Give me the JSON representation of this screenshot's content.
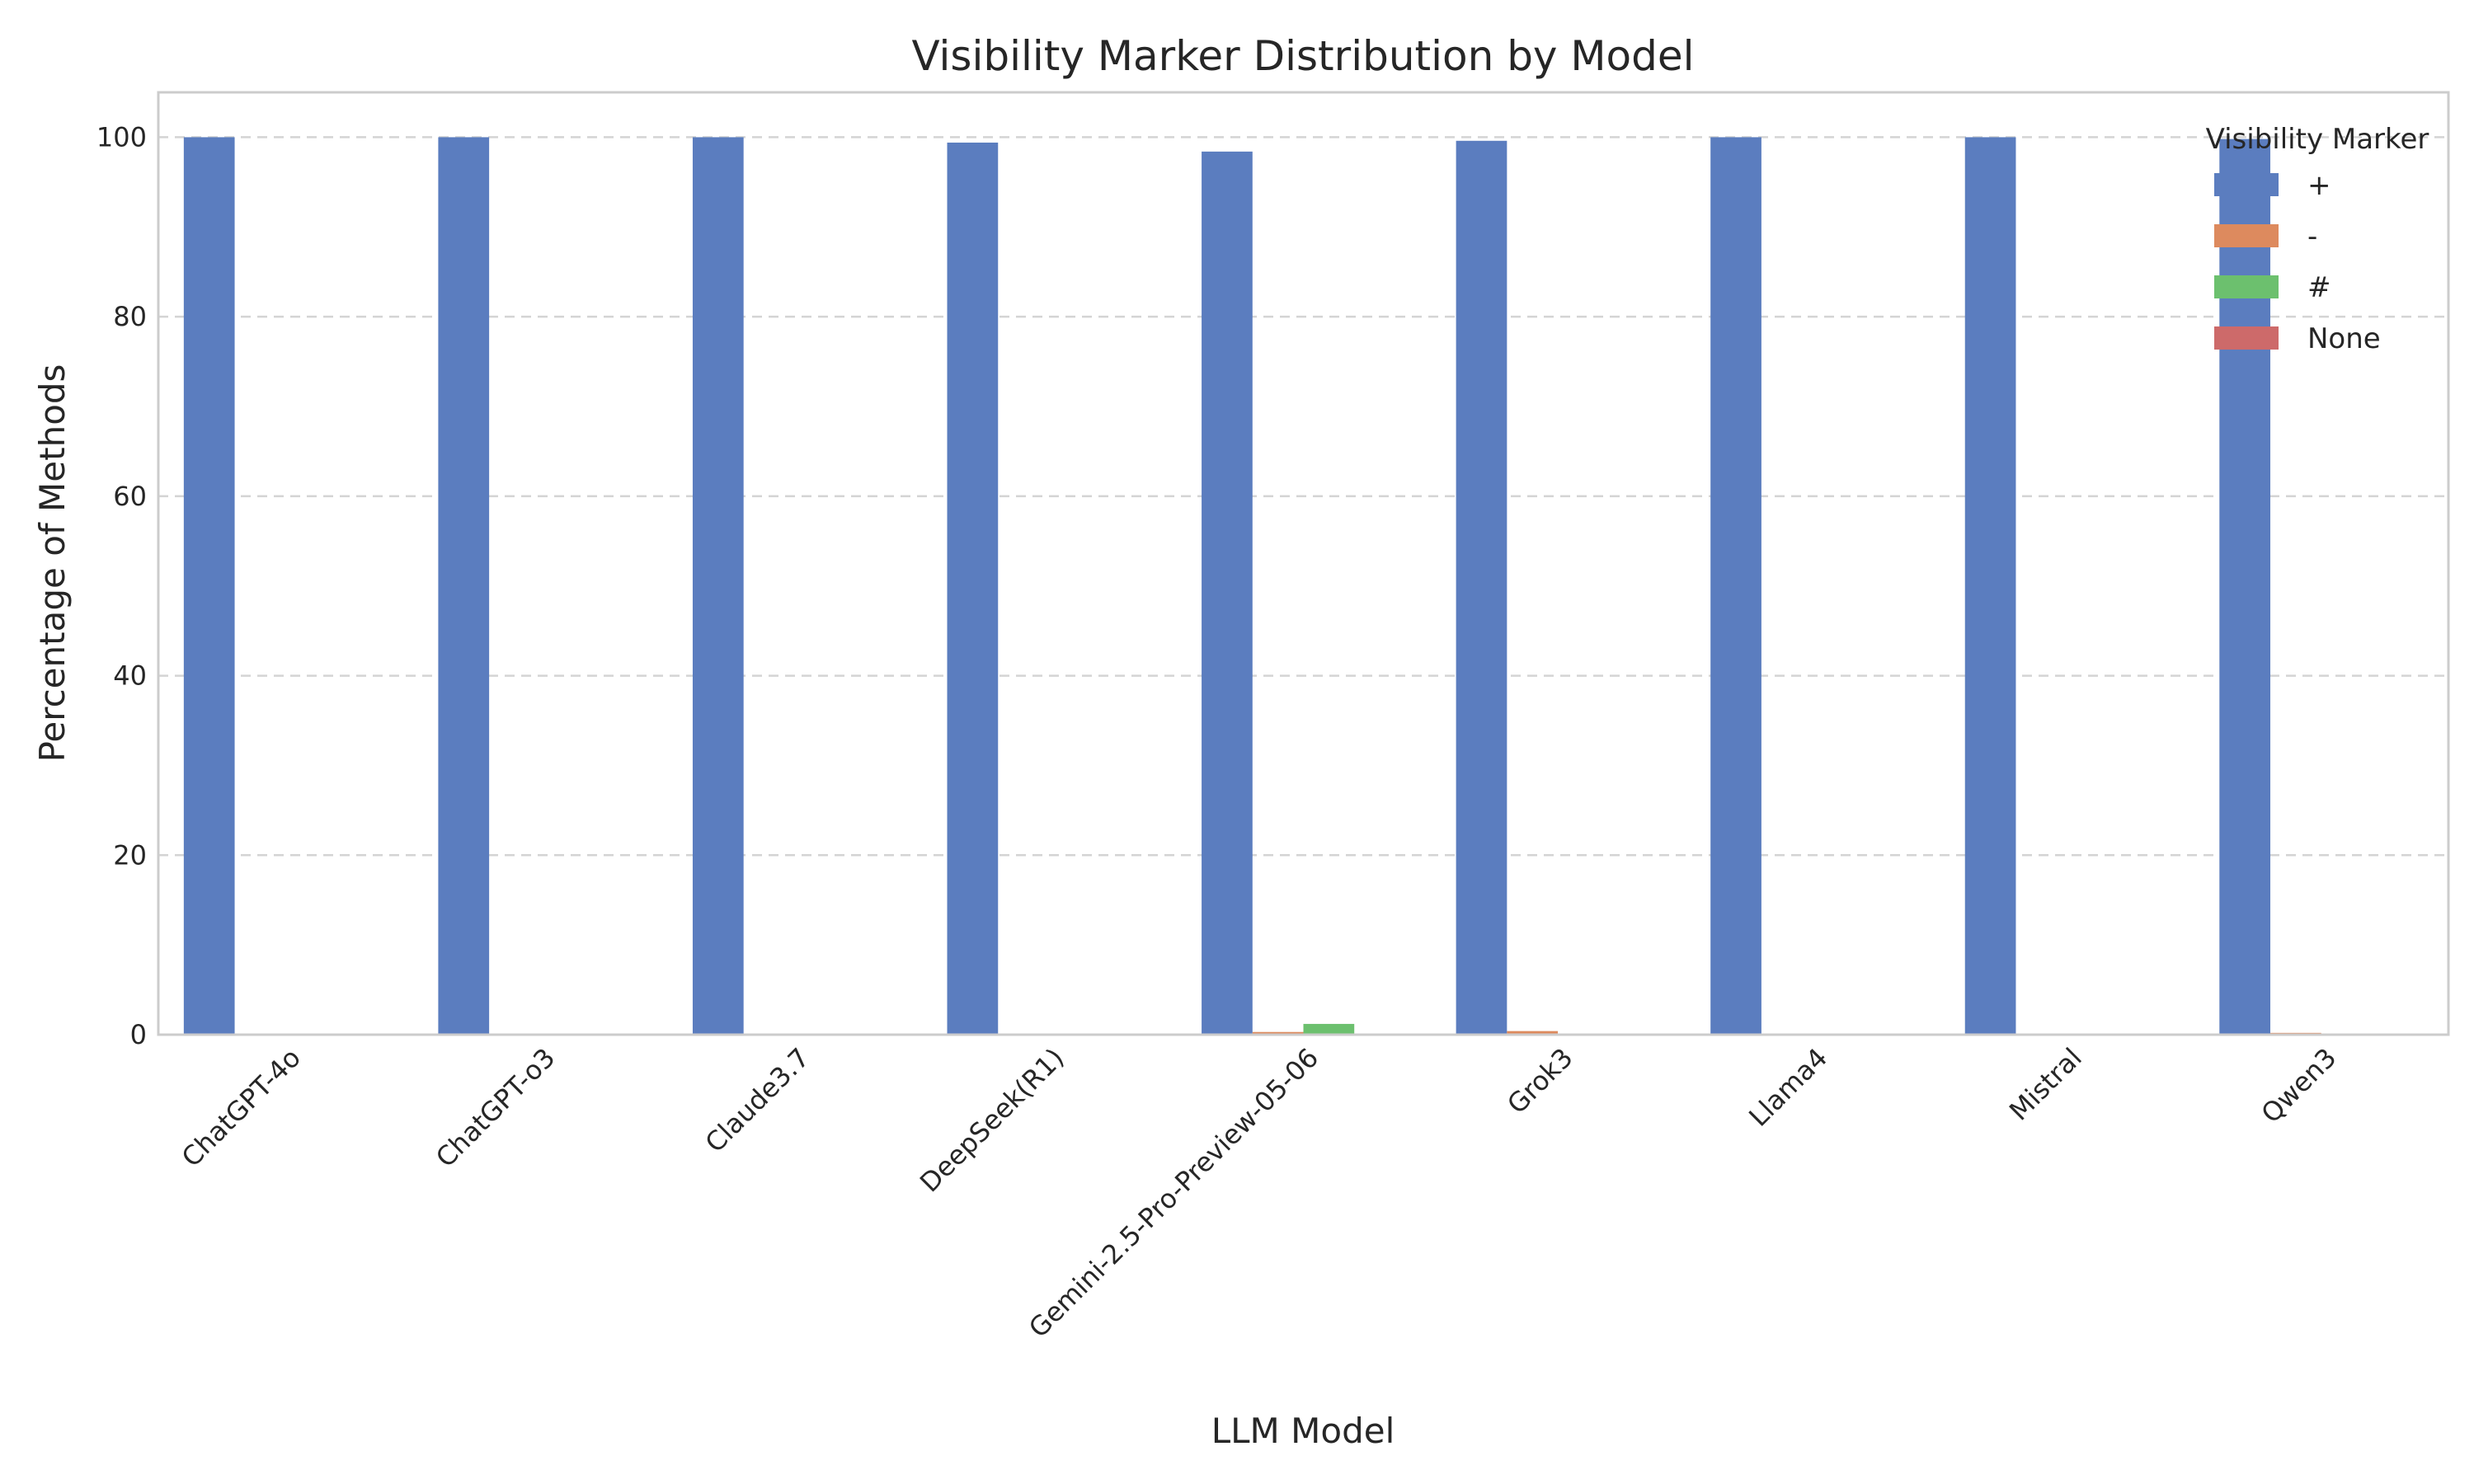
{
  "chart_data": {
    "type": "bar",
    "title": "Visibility Marker Distribution by Model",
    "xlabel": "LLM Model",
    "ylabel": "Percentage of Methods",
    "ylim": [
      0,
      105
    ],
    "yticks": [
      0,
      20,
      40,
      60,
      80,
      100
    ],
    "grid": true,
    "legend": {
      "title": "Visibility Marker",
      "placement": "top-right"
    },
    "categories": [
      "ChatGPT-4o",
      "ChatGPT-o3",
      "Claude3.7",
      "DeepSeek(R1)",
      "Gemini-2.5-Pro-Preview-05-06",
      "Grok3",
      "Llama4",
      "Mistral",
      "Qwen3"
    ],
    "series": [
      {
        "name": "+",
        "color": "#5b7dbf",
        "values": [
          100,
          100,
          100,
          99.4,
          98.4,
          99.6,
          100,
          100,
          99.8
        ]
      },
      {
        "name": "-",
        "color": "#dd8a5e",
        "values": [
          0,
          0,
          0,
          0,
          0.3,
          0.4,
          0,
          0,
          0.2
        ]
      },
      {
        "name": "#",
        "color": "#6cc06e",
        "values": [
          0,
          0,
          0,
          0,
          1.2,
          0,
          0,
          0,
          0
        ]
      },
      {
        "name": "None",
        "color": "#cd6a6a",
        "values": [
          0,
          0,
          0,
          0,
          0,
          0,
          0,
          0,
          0
        ]
      }
    ]
  }
}
